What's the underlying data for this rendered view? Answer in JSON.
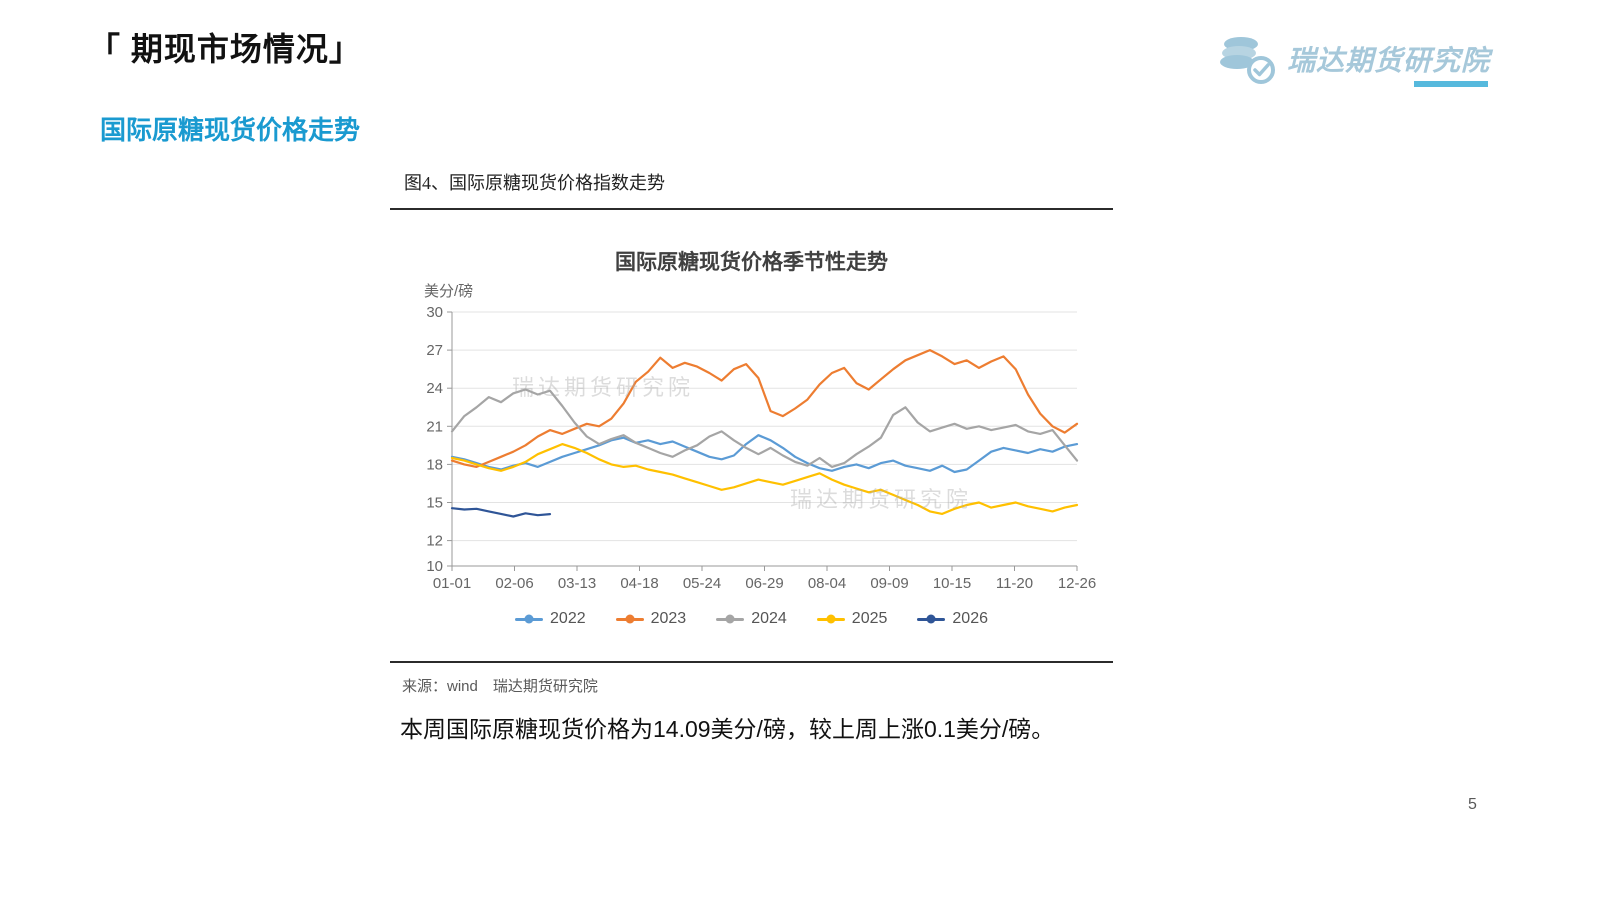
{
  "page": {
    "title": "「 期现市场情况」",
    "subtitle": "国际原糖现货价格走势",
    "body_text": "本周国际原糖现货价格为14.09美分/磅，较上周上涨0.1美分/磅。",
    "page_number": "5"
  },
  "logo": {
    "text": "瑞达期货研究院",
    "icon": "coins-check-icon",
    "text_color": "#a6c8da",
    "underline_color": "#56b9dd"
  },
  "figure": {
    "caption": "图4、国际原糖现货价格指数走势",
    "source": "来源：wind　瑞达期货研究院",
    "watermark": "瑞达期货研究院"
  },
  "chart_data": {
    "type": "line",
    "title": "国际原糖现货价格季节性走势",
    "xlabel": "",
    "ylabel": "美分/磅",
    "ylim": [
      10,
      30
    ],
    "yticks": [
      30,
      27,
      24,
      21,
      18,
      15,
      12,
      10
    ],
    "xticklabels": [
      "01-01",
      "02-06",
      "03-13",
      "04-18",
      "05-24",
      "06-29",
      "08-04",
      "09-09",
      "10-15",
      "11-20",
      "12-26"
    ],
    "grid": true,
    "legend_position": "bottom",
    "axis_color": "#999999",
    "grid_color": "#e3e3e3",
    "tick_label_color": "#666666",
    "series": [
      {
        "name": "2022",
        "color": "#5B9BD5",
        "values": [
          18.6,
          18.4,
          18.1,
          17.8,
          17.6,
          17.9,
          18.1,
          17.8,
          18.2,
          18.6,
          18.9,
          19.2,
          19.5,
          19.9,
          20.1,
          19.7,
          19.9,
          19.6,
          19.8,
          19.4,
          19.0,
          18.6,
          18.4,
          18.7,
          19.6,
          20.3,
          19.9,
          19.3,
          18.6,
          18.1,
          17.7,
          17.5,
          17.8,
          18.0,
          17.7,
          18.1,
          18.3,
          17.9,
          17.7,
          17.5,
          17.9,
          17.4,
          17.6,
          18.3,
          19.0,
          19.3,
          19.1,
          18.9,
          19.2,
          19.0,
          19.4,
          19.6
        ]
      },
      {
        "name": "2023",
        "color": "#ED7D31",
        "values": [
          18.3,
          18.0,
          17.8,
          18.2,
          18.6,
          19.0,
          19.5,
          20.2,
          20.7,
          20.4,
          20.8,
          21.2,
          21.0,
          21.6,
          22.8,
          24.5,
          25.3,
          26.4,
          25.6,
          26.0,
          25.7,
          25.2,
          24.6,
          25.5,
          25.9,
          24.8,
          22.2,
          21.8,
          22.4,
          23.1,
          24.3,
          25.2,
          25.6,
          24.4,
          23.9,
          24.7,
          25.5,
          26.2,
          26.6,
          27.0,
          26.5,
          25.9,
          26.2,
          25.6,
          26.1,
          26.5,
          25.5,
          23.5,
          22.0,
          21.0,
          20.5,
          21.2
        ]
      },
      {
        "name": "2024",
        "color": "#A5A5A5",
        "values": [
          20.6,
          21.8,
          22.5,
          23.3,
          22.9,
          23.6,
          23.9,
          23.5,
          23.8,
          22.6,
          21.3,
          20.2,
          19.6,
          20.0,
          20.3,
          19.7,
          19.3,
          18.9,
          18.6,
          19.1,
          19.5,
          20.2,
          20.6,
          19.9,
          19.3,
          18.8,
          19.3,
          18.7,
          18.2,
          17.9,
          18.5,
          17.8,
          18.1,
          18.8,
          19.4,
          20.1,
          21.9,
          22.5,
          21.3,
          20.6,
          20.9,
          21.2,
          20.8,
          21.0,
          20.7,
          20.9,
          21.1,
          20.6,
          20.4,
          20.7,
          19.5,
          18.3
        ]
      },
      {
        "name": "2025",
        "color": "#FFC000",
        "values": [
          18.5,
          18.3,
          18.0,
          17.7,
          17.5,
          17.8,
          18.2,
          18.8,
          19.2,
          19.6,
          19.3,
          18.9,
          18.4,
          18.0,
          17.8,
          17.9,
          17.6,
          17.4,
          17.2,
          16.9,
          16.6,
          16.3,
          16.0,
          16.2,
          16.5,
          16.8,
          16.6,
          16.4,
          16.7,
          17.0,
          17.3,
          16.8,
          16.4,
          16.1,
          15.8,
          16.0,
          15.6,
          15.2,
          14.8,
          14.3,
          14.1,
          14.5,
          14.8,
          15.0,
          14.6,
          14.8,
          15.0,
          14.7,
          14.5,
          14.3,
          14.6,
          14.8
        ]
      },
      {
        "name": "2026",
        "color": "#2F5597",
        "values": [
          14.55,
          14.45,
          14.5,
          14.3,
          14.1,
          13.9,
          14.15,
          14.0,
          14.09
        ]
      }
    ]
  }
}
